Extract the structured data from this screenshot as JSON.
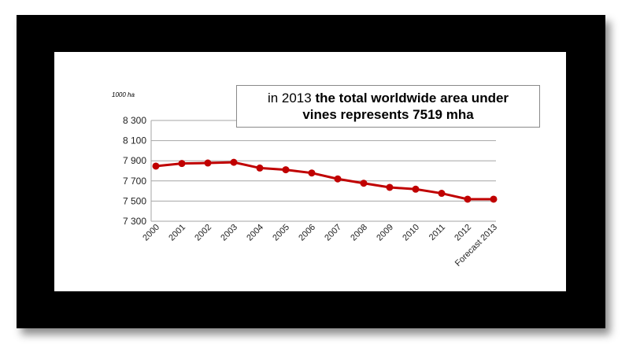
{
  "callout": {
    "text_plain": "in 2013 ",
    "text_bold_1": "the total worldwide area under",
    "text_bold_2": "vines represents 7519 mha"
  },
  "colors": {
    "line": "#c00000",
    "frame": "#000000",
    "grid": "#a6a6a6"
  },
  "chart_data": {
    "type": "line",
    "title": "",
    "unit_label": "1000 ha",
    "xlabel": "",
    "ylabel": "",
    "ylim": [
      7300,
      8300
    ],
    "yticks": [
      7300,
      7500,
      7700,
      7900,
      8100,
      8300
    ],
    "ytick_labels": [
      "7 300",
      "7 500",
      "7 700",
      "7 900",
      "8 100",
      "8 300"
    ],
    "grid": true,
    "categories": [
      "2000",
      "2001",
      "2002",
      "2003",
      "2004",
      "2005",
      "2006",
      "2007",
      "2008",
      "2009",
      "2010",
      "2011",
      "2012",
      "Forecast 2013"
    ],
    "series": [
      {
        "values": [
          7847,
          7873,
          7878,
          7885,
          7828,
          7811,
          7779,
          7720,
          7677,
          7636,
          7618,
          7577,
          7519,
          7519
        ]
      }
    ]
  }
}
